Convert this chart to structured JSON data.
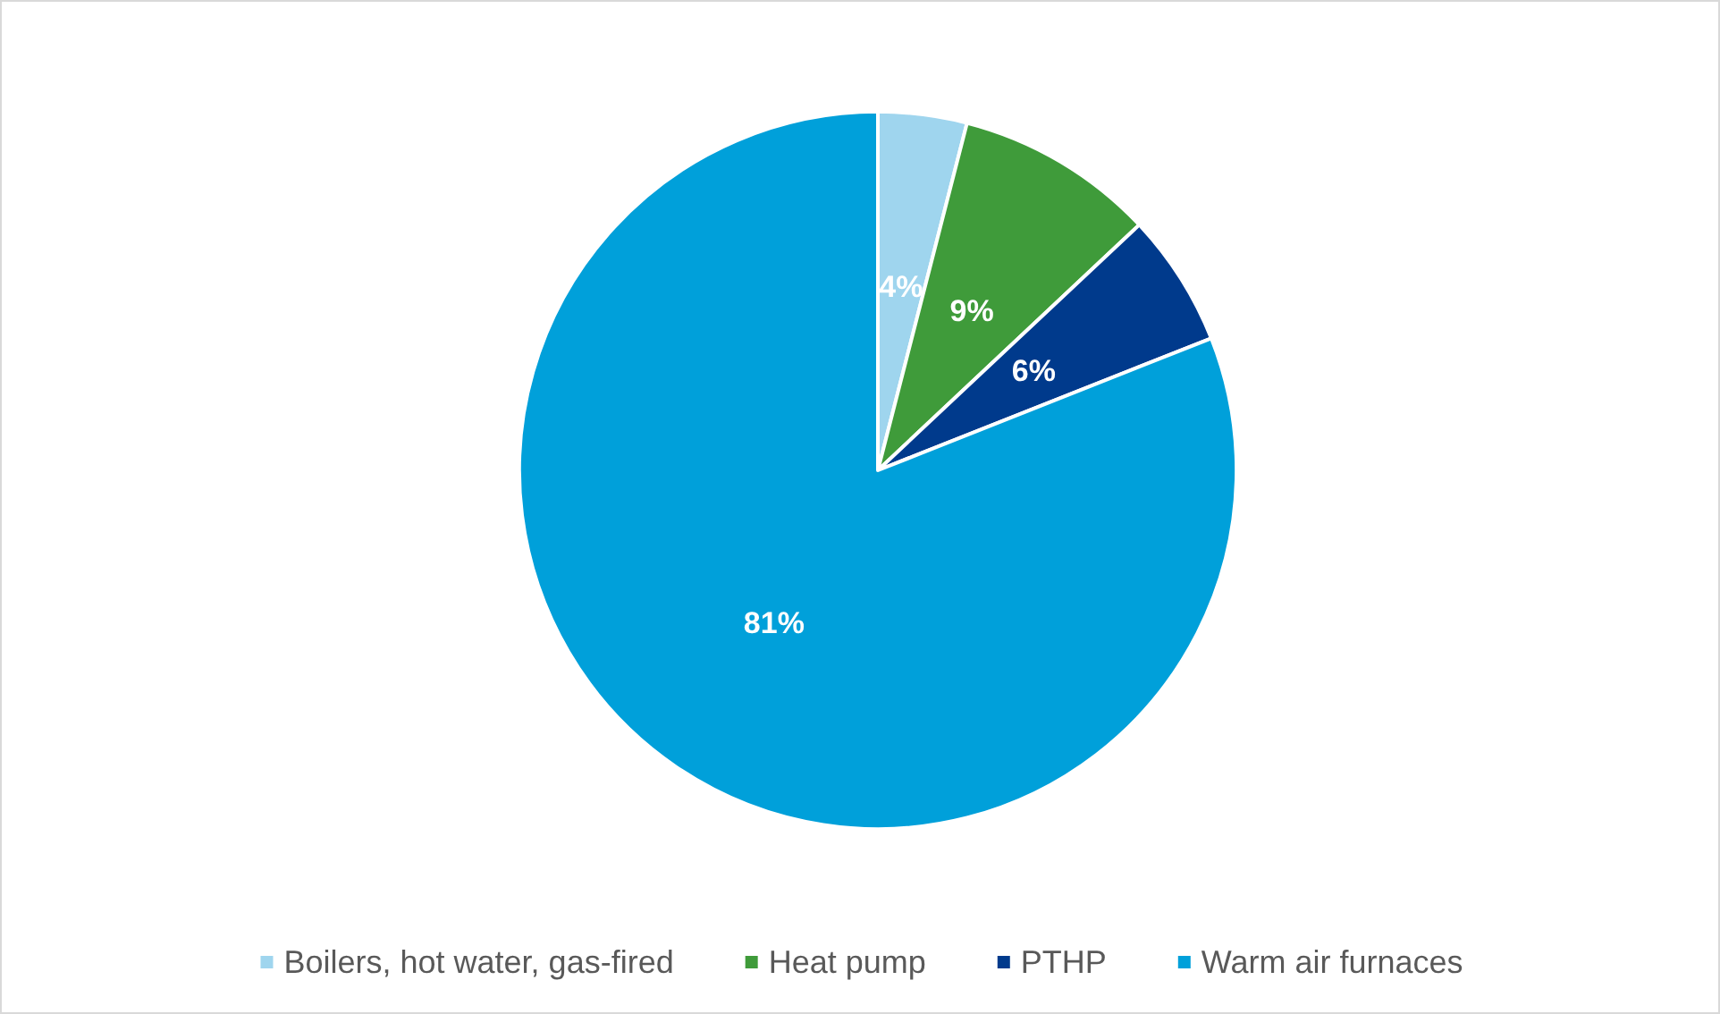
{
  "chart_data": {
    "type": "pie",
    "categories": [
      "Boilers, hot water, gas-fired",
      "Heat pump",
      "PTHP",
      "Warm air furnaces"
    ],
    "values": [
      4,
      9,
      6,
      81
    ],
    "colors": [
      "#9fd5ee",
      "#3f9b3a",
      "#003a8c",
      "#00a0da"
    ],
    "value_labels": [
      "4%",
      "9%",
      "6%",
      "81%"
    ],
    "legend": "bottom"
  }
}
